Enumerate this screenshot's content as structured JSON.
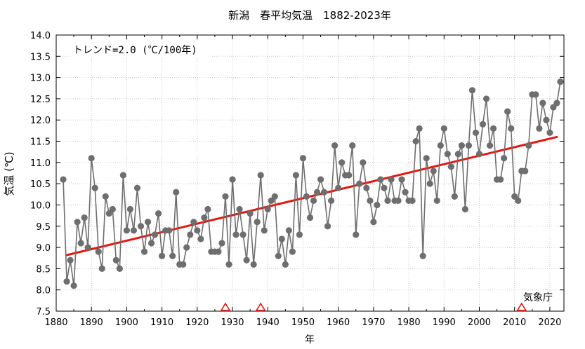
{
  "chart_data": {
    "type": "line",
    "title": "新潟　春平均気温　1882-2023年",
    "xlabel": "年",
    "ylabel": "気温 (℃)",
    "annotation": "トレンド=2.0 (℃/100年)",
    "credit": "気象庁",
    "xlim": [
      1880,
      2024
    ],
    "ylim": [
      7.5,
      14.0
    ],
    "x_ticks": [
      1880,
      1890,
      1900,
      1910,
      1920,
      1930,
      1940,
      1950,
      1960,
      1970,
      1980,
      1990,
      2000,
      2010,
      2020
    ],
    "y_ticks": [
      7.5,
      8.0,
      8.5,
      9.0,
      9.5,
      10.0,
      10.5,
      11.0,
      11.5,
      12.0,
      12.5,
      13.0,
      13.5,
      14.0
    ],
    "grid": "on",
    "series": [
      {
        "color": "#6e6e6e",
        "x": [
          1882,
          1883,
          1884,
          1885,
          1886,
          1887,
          1888,
          1889,
          1890,
          1891,
          1892,
          1893,
          1894,
          1895,
          1896,
          1897,
          1898,
          1899,
          1900,
          1901,
          1902,
          1903,
          1904,
          1905,
          1906,
          1907,
          1908,
          1909,
          1910,
          1911,
          1912,
          1913,
          1914,
          1915,
          1916,
          1917,
          1918,
          1919,
          1920,
          1921,
          1922,
          1923,
          1924,
          1925,
          1926,
          1927,
          1928,
          1929,
          1930,
          1931,
          1932,
          1933,
          1934,
          1935,
          1936,
          1937,
          1938,
          1939,
          1940,
          1941,
          1942,
          1943,
          1944,
          1945,
          1946,
          1947,
          1948,
          1949,
          1950,
          1951,
          1952,
          1953,
          1954,
          1955,
          1956,
          1957,
          1958,
          1959,
          1960,
          1961,
          1962,
          1963,
          1964,
          1965,
          1966,
          1967,
          1968,
          1969,
          1970,
          1971,
          1972,
          1973,
          1974,
          1975,
          1976,
          1977,
          1978,
          1979,
          1980,
          1981,
          1982,
          1983,
          1984,
          1985,
          1986,
          1987,
          1988,
          1989,
          1990,
          1991,
          1992,
          1993,
          1994,
          1995,
          1996,
          1997,
          1998,
          1999,
          2000,
          2001,
          2002,
          2003,
          2004,
          2005,
          2006,
          2007,
          2008,
          2009,
          2010,
          2011,
          2012,
          2013,
          2014,
          2015,
          2016,
          2017,
          2018,
          2019,
          2020,
          2021,
          2022,
          2023
        ],
        "y": [
          10.6,
          8.2,
          8.7,
          8.1,
          9.6,
          9.1,
          9.7,
          9.0,
          11.1,
          10.4,
          8.9,
          8.5,
          10.2,
          9.8,
          9.9,
          8.7,
          8.5,
          10.7,
          9.4,
          9.9,
          9.4,
          10.4,
          9.5,
          8.9,
          9.6,
          9.1,
          9.3,
          9.8,
          8.8,
          9.4,
          9.4,
          8.8,
          10.3,
          8.6,
          8.6,
          9.0,
          9.3,
          9.6,
          9.4,
          9.2,
          9.7,
          9.9,
          8.9,
          8.9,
          8.9,
          9.1,
          10.2,
          8.6,
          10.6,
          9.3,
          9.9,
          9.3,
          8.7,
          9.8,
          8.6,
          9.6,
          10.7,
          9.4,
          9.9,
          10.1,
          10.2,
          8.8,
          9.2,
          8.6,
          9.4,
          8.9,
          10.7,
          9.3,
          11.1,
          10.2,
          9.7,
          10.1,
          10.3,
          10.6,
          10.3,
          9.5,
          10.1,
          11.4,
          10.4,
          11.0,
          10.7,
          10.7,
          11.4,
          9.3,
          10.5,
          11.0,
          10.4,
          10.1,
          9.6,
          10.0,
          10.6,
          10.4,
          10.1,
          10.6,
          10.1,
          10.1,
          10.6,
          10.3,
          10.1,
          10.1,
          11.5,
          11.8,
          8.8,
          11.1,
          10.5,
          10.8,
          10.1,
          11.4,
          11.8,
          11.2,
          10.9,
          10.2,
          11.2,
          11.4,
          9.9,
          11.4,
          12.7,
          11.7,
          11.2,
          11.9,
          12.5,
          11.4,
          11.8,
          10.6,
          10.6,
          11.1,
          12.2,
          11.8,
          10.2,
          10.1,
          10.8,
          10.8,
          11.4,
          12.6,
          12.6,
          11.8,
          12.4,
          12.0,
          11.7,
          12.3,
          12.4,
          12.9
        ]
      }
    ],
    "trend": {
      "color": "#e8140f",
      "x": [
        1883,
        2022
      ],
      "y": [
        8.82,
        11.6
      ]
    },
    "station_change_markers": {
      "color": "#e8140f",
      "x": [
        1928,
        1938,
        2012
      ]
    }
  }
}
